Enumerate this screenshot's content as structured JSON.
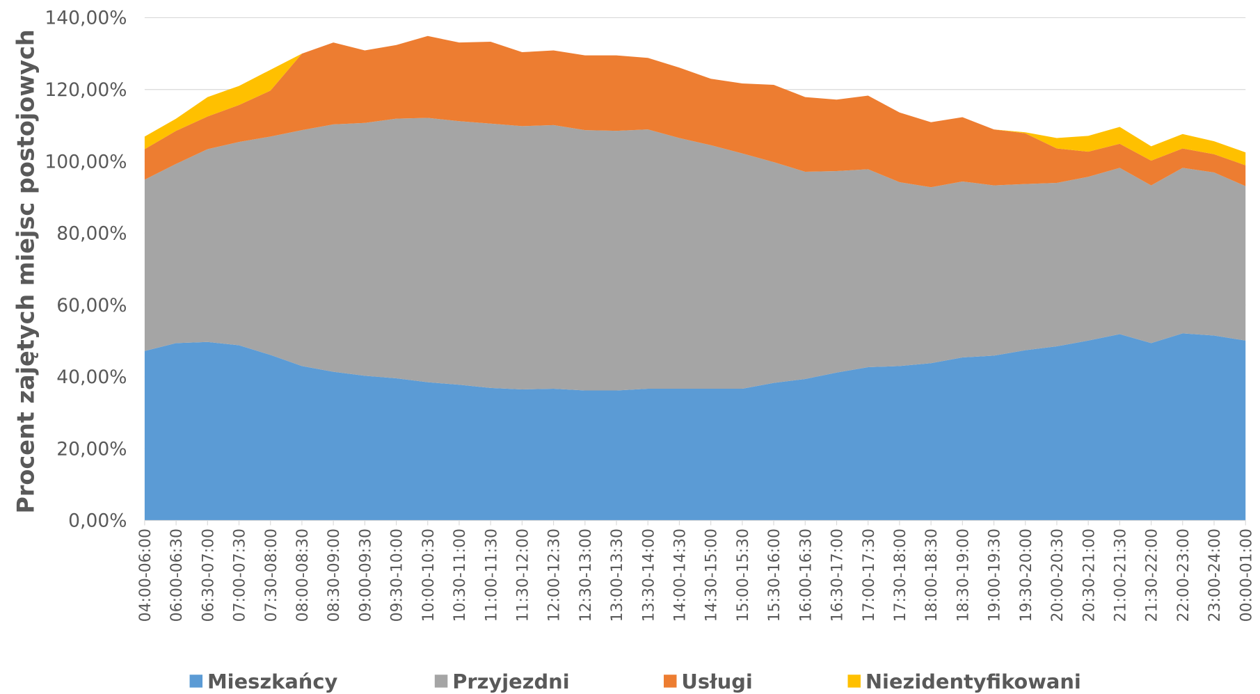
{
  "chart_data": {
    "type": "stacked_area",
    "y_label": "Procent zajętych miejsc postojowych",
    "categories": [
      "04:00-06:00",
      "06:00-06:30",
      "06:30-07:00",
      "07:00-07:30",
      "07:30-08:00",
      "08:00-08:30",
      "08:30-09:00",
      "09:00-09:30",
      "09:30-10:00",
      "10:00-10:30",
      "10:30-11:00",
      "11:00-11:30",
      "11:30-12:00",
      "12:00-12:30",
      "12:30-13:00",
      "13:00-13:30",
      "13:30-14:00",
      "14:00-14:30",
      "14:30-15:00",
      "15:00-15:30",
      "15:30-16:00",
      "16:00-16:30",
      "16:30-17:00",
      "17:00-17:30",
      "17:30-18:00",
      "18:00-18:30",
      "18:30-19:00",
      "19:00-19:30",
      "19:30-20:00",
      "20:00-20:30",
      "20:30-21:00",
      "21:00-21:30",
      "21:30-22:00",
      "22:00-23:00",
      "23:00-24:00",
      "00:00-01:00"
    ],
    "series": [
      {
        "name": "Mieszkańcy",
        "color": "#5b9bd5",
        "values": [
          47.2,
          49.4,
          49.7,
          48.8,
          46.1,
          43.0,
          41.4,
          40.3,
          39.6,
          38.5,
          37.8,
          36.9,
          36.5,
          36.7,
          36.2,
          36.2,
          36.7,
          36.7,
          36.7,
          36.7,
          38.3,
          39.4,
          41.2,
          42.7,
          43.0,
          43.8,
          45.4,
          45.9,
          47.4,
          48.5,
          50.1,
          51.9,
          49.4,
          52.1,
          51.5,
          50.1
        ]
      },
      {
        "name": "Przyjezdni",
        "color": "#a5a5a5",
        "values": [
          47.7,
          49.9,
          53.7,
          56.6,
          60.8,
          65.7,
          68.9,
          70.4,
          72.3,
          73.6,
          73.4,
          73.6,
          73.3,
          73.4,
          72.5,
          72.3,
          72.2,
          69.8,
          67.8,
          65.5,
          61.5,
          57.7,
          56.1,
          55.1,
          51.2,
          49.0,
          49.0,
          47.4,
          46.3,
          45.5,
          45.6,
          46.3,
          43.9,
          46.1,
          45.4,
          43.0
        ]
      },
      {
        "name": "Usługi",
        "color": "#ed7d31",
        "values": [
          8.5,
          9.2,
          9.1,
          10.3,
          12.8,
          21.3,
          22.8,
          20.2,
          20.5,
          22.8,
          21.9,
          22.8,
          20.6,
          20.8,
          20.8,
          21.0,
          19.9,
          19.6,
          18.5,
          19.5,
          21.5,
          20.8,
          19.9,
          20.5,
          19.4,
          18.1,
          17.9,
          15.6,
          14.1,
          9.6,
          7.0,
          6.7,
          6.9,
          5.4,
          5.1,
          5.8
        ]
      },
      {
        "name": "Niezidentyfikowani",
        "color": "#ffc000",
        "values": [
          3.5,
          3.4,
          5.4,
          5.3,
          5.8,
          0,
          0,
          0,
          0,
          0,
          0,
          0,
          0,
          0,
          0,
          0,
          0,
          0,
          0,
          0,
          0,
          0,
          0,
          0,
          0,
          0,
          0,
          0,
          0.3,
          2.9,
          4.4,
          4.7,
          4.0,
          4.0,
          3.6,
          3.6
        ]
      }
    ],
    "ylim": [
      0,
      140
    ],
    "yticks": [
      {
        "value": 0,
        "label": "0,00%"
      },
      {
        "value": 20,
        "label": "20,00%"
      },
      {
        "value": 40,
        "label": "40,00%"
      },
      {
        "value": 60,
        "label": "60,00%"
      },
      {
        "value": 80,
        "label": "80,00%"
      },
      {
        "value": 100,
        "label": "100,00%"
      },
      {
        "value": 120,
        "label": "120,00%"
      },
      {
        "value": 140,
        "label": "140,00%"
      }
    ],
    "grid": true,
    "legend": "bottom"
  }
}
